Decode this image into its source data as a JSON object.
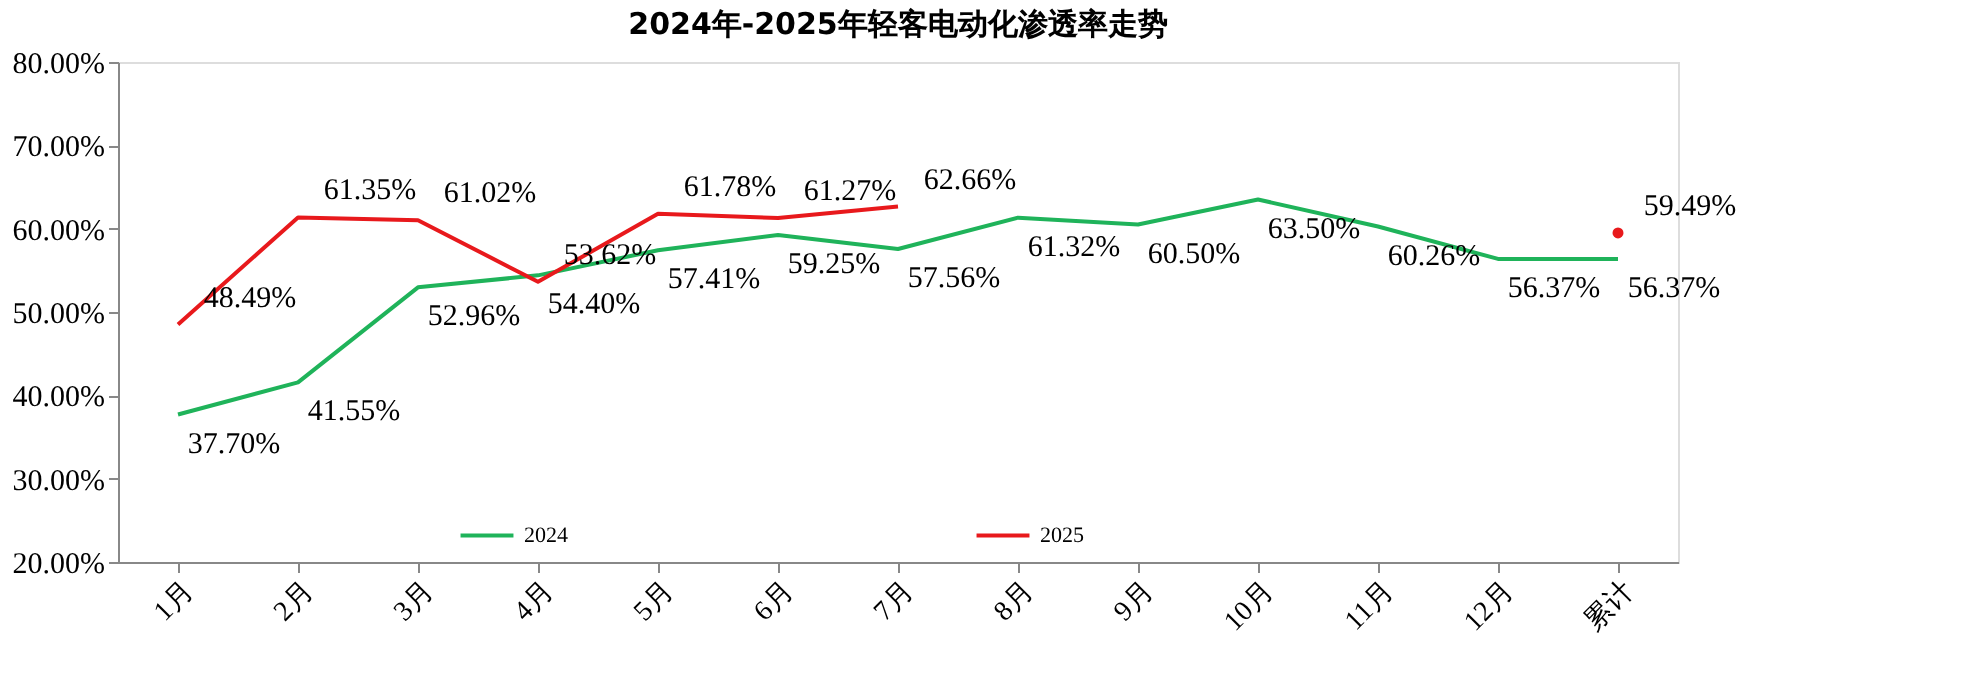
{
  "chart_data": {
    "type": "line",
    "title": "2024年-2025年轻客电动化渗透率走势",
    "categories": [
      "1月",
      "2月",
      "3月",
      "4月",
      "5月",
      "6月",
      "7月",
      "8月",
      "9月",
      "10月",
      "11月",
      "12月",
      "累计"
    ],
    "series": [
      {
        "name": "2024",
        "color": "#1fb35a",
        "values": [
          37.7,
          41.55,
          52.96,
          54.4,
          57.41,
          59.25,
          57.56,
          61.32,
          60.5,
          63.5,
          60.26,
          56.37,
          56.37
        ],
        "value_labels": [
          "37.70%",
          "41.55%",
          "52.96%",
          "54.40%",
          "57.41%",
          "59.25%",
          "57.56%",
          "61.32%",
          "60.50%",
          "63.50%",
          "60.26%",
          "56.37%",
          "56.37%"
        ]
      },
      {
        "name": "2025",
        "color": "#e8191c",
        "values": [
          48.49,
          61.35,
          61.02,
          53.62,
          61.78,
          61.27,
          62.66,
          null,
          null,
          null,
          null,
          null,
          59.49
        ],
        "value_labels": [
          "48.49%",
          "61.35%",
          "61.02%",
          "53.62%",
          "61.78%",
          "61.27%",
          "62.66%",
          null,
          null,
          null,
          null,
          null,
          "59.49%"
        ]
      }
    ],
    "ylim": [
      20,
      80
    ],
    "yticks": [
      {
        "value": 20,
        "label": "20.00%"
      },
      {
        "value": 30,
        "label": "30.00%"
      },
      {
        "value": 40,
        "label": "40.00%"
      },
      {
        "value": 50,
        "label": "50.00%"
      },
      {
        "value": 60,
        "label": "60.00%"
      },
      {
        "value": 70,
        "label": "70.00%"
      },
      {
        "value": 80,
        "label": "80.00%"
      }
    ],
    "grid": false,
    "legend": "bottom",
    "marker": "none",
    "line_style": "solid"
  }
}
